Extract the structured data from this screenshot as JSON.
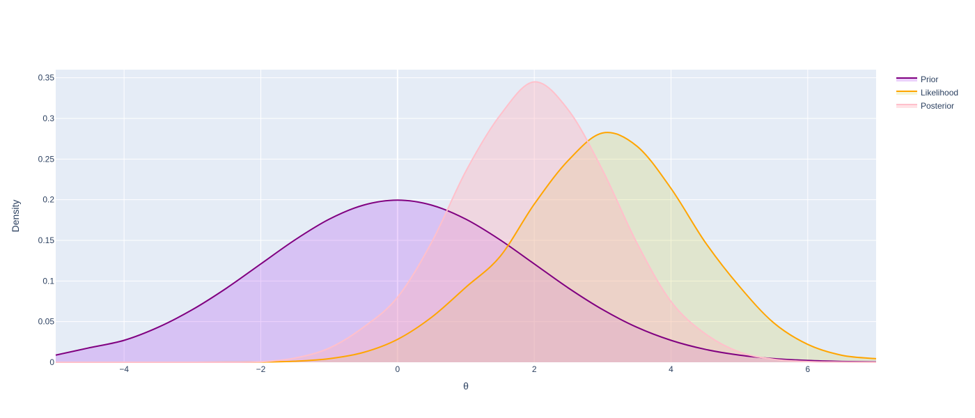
{
  "chart_data": {
    "type": "area",
    "title": "",
    "xlabel": "θ",
    "ylabel": "Density",
    "xlim": [
      -5,
      7
    ],
    "ylim": [
      0,
      0.36
    ],
    "x_ticks": [
      -4,
      -2,
      0,
      2,
      4,
      6
    ],
    "x_tick_labels": [
      "−4",
      "−2",
      "0",
      "2",
      "4",
      "6"
    ],
    "y_ticks": [
      0,
      0.05,
      0.1,
      0.15,
      0.2,
      0.25,
      0.3,
      0.35
    ],
    "y_tick_labels": [
      "0",
      "0.05",
      "0.1",
      "0.15",
      "0.2",
      "0.25",
      "0.3",
      "0.35"
    ],
    "grid": true,
    "legend_position": "top-right",
    "plot_background": "#e5ecf6",
    "x": [
      -5,
      -4.5,
      -4,
      -3.5,
      -3,
      -2.5,
      -2,
      -1.5,
      -1,
      -0.5,
      0,
      0.5,
      1,
      1.5,
      2,
      2.5,
      3,
      3.5,
      4,
      4.5,
      5,
      5.5,
      6,
      6.5,
      7
    ],
    "series": [
      {
        "name": "Prior",
        "line_color": "#800080",
        "fill_color": "rgba(160, 32, 240, 0.2)",
        "values": [
          0.0088,
          0.018,
          0.027,
          0.0431,
          0.0648,
          0.0913,
          0.121,
          0.1506,
          0.176,
          0.1933,
          0.1995,
          0.1933,
          0.176,
          0.1506,
          0.121,
          0.0913,
          0.0648,
          0.0431,
          0.027,
          0.0159,
          0.0088,
          0.0045,
          0.0022,
          0.001,
          0.0004
        ]
      },
      {
        "name": "Likelihood",
        "line_color": "#ffa500",
        "fill_color": "rgba(204, 204, 51, 0.2)",
        "values": [
          0.0,
          0.0,
          0.0,
          0.0,
          0.0,
          0.0001,
          0.0003,
          0.0013,
          0.0044,
          0.0121,
          0.0282,
          0.0555,
          0.0924,
          0.1302,
          0.1946,
          0.2486,
          0.2821,
          0.266,
          0.2139,
          0.1477,
          0.0934,
          0.0487,
          0.022,
          0.0086,
          0.0044
        ]
      },
      {
        "name": "Posterior",
        "line_color": "#ffc0cb",
        "fill_color": "rgba(255, 182, 193, 0.4)",
        "values": [
          0.0,
          0.0,
          0.0,
          0.0,
          0.0,
          0.0,
          0.0006,
          0.0052,
          0.0174,
          0.043,
          0.08,
          0.1478,
          0.2352,
          0.3039,
          0.345,
          0.3102,
          0.2362,
          0.147,
          0.0748,
          0.0352,
          0.0126,
          0.0037,
          0.0009,
          0.0002,
          0.0
        ]
      }
    ]
  }
}
